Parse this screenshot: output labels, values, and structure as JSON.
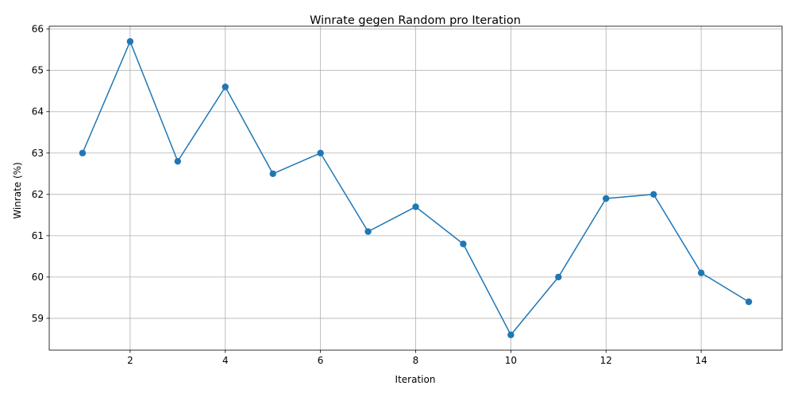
{
  "chart_data": {
    "type": "line",
    "title": "Winrate gegen Random pro Iteration",
    "xlabel": "Iteration",
    "ylabel": "Winrate (%)",
    "xlim": [
      0.3,
      15.7
    ],
    "ylim": [
      58.23,
      66.07
    ],
    "xticks": [
      2,
      4,
      6,
      8,
      10,
      12,
      14
    ],
    "yticks": [
      59,
      60,
      61,
      62,
      63,
      64,
      65,
      66
    ],
    "grid": true,
    "series": [
      {
        "color": "#1f77b4",
        "marker": "circle",
        "x": [
          1,
          2,
          3,
          4,
          5,
          6,
          7,
          8,
          9,
          10,
          11,
          12,
          13,
          14,
          15
        ],
        "values": [
          63.0,
          65.7,
          62.8,
          64.6,
          62.5,
          63.0,
          61.1,
          61.7,
          60.8,
          58.6,
          60.0,
          61.9,
          62.0,
          60.1,
          59.4
        ]
      }
    ]
  }
}
